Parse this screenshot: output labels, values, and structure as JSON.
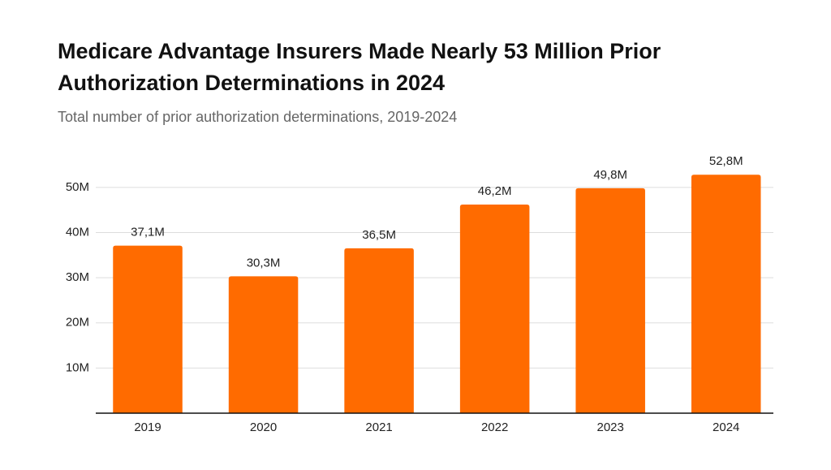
{
  "chart_data": {
    "type": "bar",
    "title": "Medicare Advantage Insurers Made Nearly 53 Million Prior Authorization Determinations in 2024",
    "subtitle": "Total number of prior authorization determinations, 2019-2024",
    "categories": [
      "2019",
      "2020",
      "2021",
      "2022",
      "2023",
      "2024"
    ],
    "values": [
      37.1,
      30.3,
      36.5,
      46.2,
      49.8,
      52.8
    ],
    "value_labels": [
      "37,1M",
      "30,3M",
      "36,5M",
      "46,2M",
      "49,8M",
      "52,8M"
    ],
    "color": "#ff6b00",
    "ylim": [
      0,
      55
    ],
    "yticks": [
      {
        "value": 10,
        "label": "10M"
      },
      {
        "value": 20,
        "label": "20M"
      },
      {
        "value": 30,
        "label": "30M"
      },
      {
        "value": 40,
        "label": "40M"
      },
      {
        "value": 50,
        "label": "50M"
      }
    ],
    "grid": true
  }
}
